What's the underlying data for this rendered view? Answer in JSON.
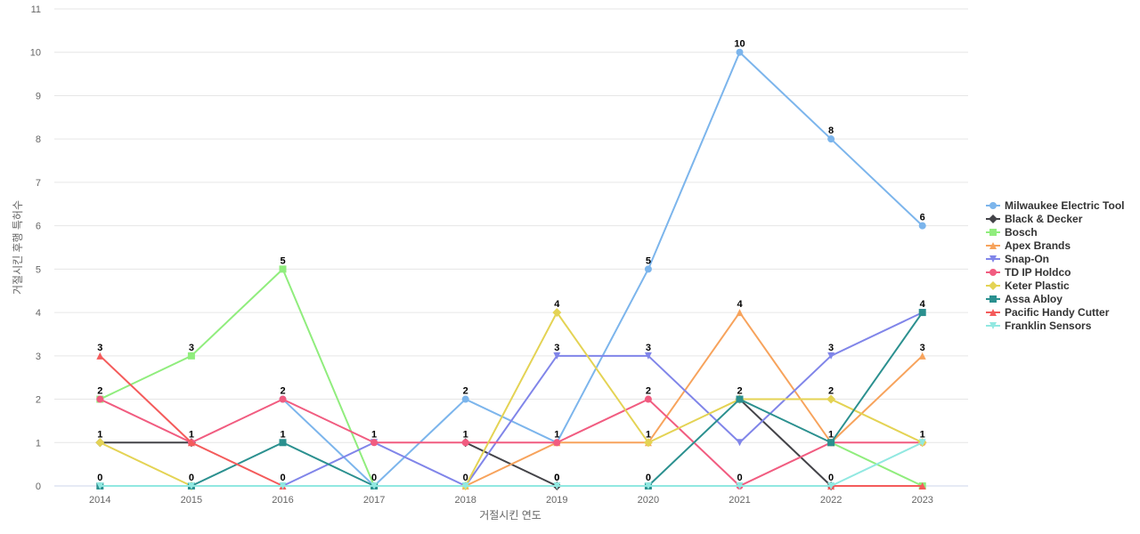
{
  "chart_data": {
    "type": "line",
    "xlabel": "거절시킨 연도",
    "ylabel": "거절시킨 후행 특허수",
    "ylim": [
      0,
      11
    ],
    "yticks": [
      0,
      1,
      2,
      3,
      4,
      5,
      6,
      7,
      8,
      9,
      10,
      11
    ],
    "grid": true,
    "legend_position": "right",
    "categories": [
      "2014",
      "2015",
      "2016",
      "2017",
      "2018",
      "2019",
      "2020",
      "2021",
      "2022",
      "2023"
    ],
    "series": [
      {
        "name": "Milwaukee Electric Tool",
        "color": "#7cb5ec",
        "marker": "circle",
        "values": [
          null,
          null,
          2,
          0,
          2,
          1,
          5,
          10,
          8,
          6
        ],
        "labels": [
          false,
          false,
          false,
          false,
          true,
          true,
          true,
          true,
          true,
          true
        ]
      },
      {
        "name": "Black & Decker",
        "color": "#434348",
        "marker": "diamond",
        "values": [
          1,
          1,
          null,
          null,
          1,
          0,
          null,
          2,
          0,
          null
        ],
        "labels": [
          true,
          true,
          false,
          false,
          true,
          true,
          false,
          true,
          true,
          false
        ]
      },
      {
        "name": "Bosch",
        "color": "#90ed7d",
        "marker": "square",
        "values": [
          2,
          3,
          5,
          0,
          null,
          null,
          null,
          null,
          1,
          0
        ],
        "labels": [
          false,
          true,
          true,
          false,
          false,
          false,
          false,
          false,
          false,
          false
        ]
      },
      {
        "name": "Apex Brands",
        "color": "#f7a35c",
        "marker": "triangle",
        "values": [
          null,
          null,
          null,
          null,
          0,
          1,
          1,
          4,
          1,
          3
        ],
        "labels": [
          false,
          false,
          false,
          false,
          false,
          false,
          false,
          true,
          false,
          true
        ]
      },
      {
        "name": "Snap-On",
        "color": "#8085e9",
        "marker": "triangle-down",
        "values": [
          null,
          null,
          0,
          1,
          0,
          3,
          3,
          1,
          3,
          4
        ],
        "labels": [
          false,
          false,
          false,
          false,
          false,
          true,
          true,
          false,
          true,
          true
        ]
      },
      {
        "name": "TD IP Holdco",
        "color": "#f15c80",
        "marker": "circle",
        "values": [
          2,
          1,
          2,
          1,
          1,
          1,
          2,
          0,
          1,
          1
        ],
        "labels": [
          true,
          false,
          true,
          true,
          false,
          false,
          true,
          false,
          false,
          false
        ]
      },
      {
        "name": "Keter Plastic",
        "color": "#e4d354",
        "marker": "diamond",
        "values": [
          1,
          0,
          null,
          null,
          0,
          4,
          1,
          2,
          2,
          1
        ],
        "labels": [
          false,
          true,
          false,
          false,
          false,
          true,
          true,
          false,
          true,
          true
        ]
      },
      {
        "name": "Assa Abloy",
        "color": "#2b908f",
        "marker": "square",
        "values": [
          0,
          0,
          1,
          0,
          null,
          null,
          0,
          2,
          1,
          4
        ],
        "labels": [
          false,
          false,
          true,
          false,
          false,
          false,
          false,
          false,
          true,
          false
        ]
      },
      {
        "name": "Pacific Handy Cutter",
        "color": "#f45b5b",
        "marker": "triangle",
        "values": [
          3,
          1,
          0,
          null,
          null,
          null,
          null,
          null,
          0,
          0
        ],
        "labels": [
          true,
          false,
          false,
          false,
          false,
          false,
          false,
          false,
          false,
          false
        ]
      },
      {
        "name": "Franklin Sensors",
        "color": "#91e8e1",
        "marker": "triangle-down",
        "values": [
          0,
          0,
          0,
          0,
          0,
          0,
          0,
          0,
          0,
          1
        ],
        "labels": [
          true,
          false,
          true,
          true,
          true,
          true,
          true,
          true,
          false,
          false
        ]
      }
    ]
  }
}
